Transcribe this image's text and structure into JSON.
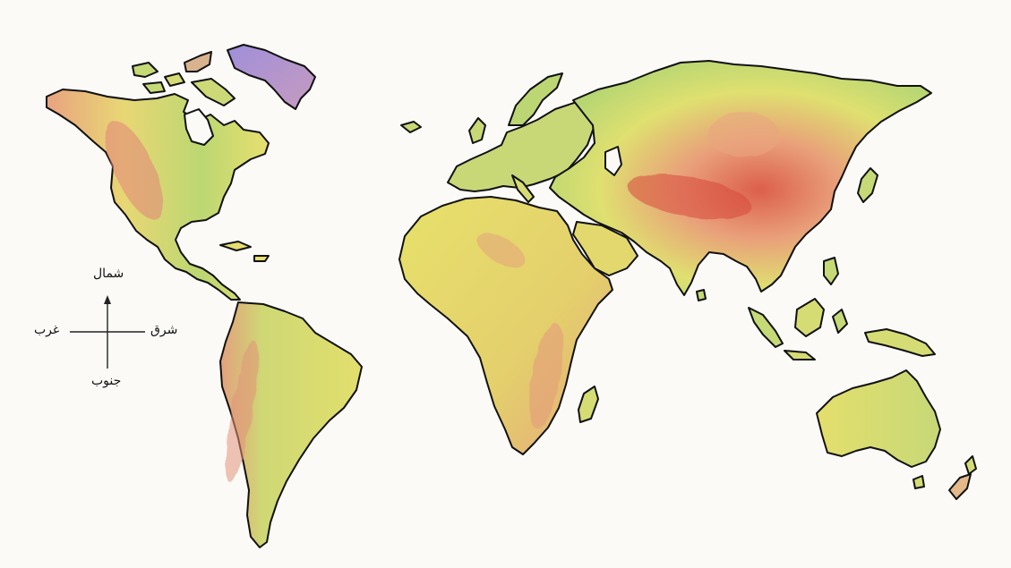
{
  "compass": {
    "north": "شمال",
    "south": "جنوب",
    "east": "شرق",
    "west": "غرب"
  },
  "legend_colors": {
    "lowland_green": "#a9cf6e",
    "plain_yellow": "#e9e36a",
    "hill_orange": "#e9ad7e",
    "mountain_red": "#d9584a",
    "ice_purple": "#a68fd6",
    "coastline": "#111111"
  }
}
